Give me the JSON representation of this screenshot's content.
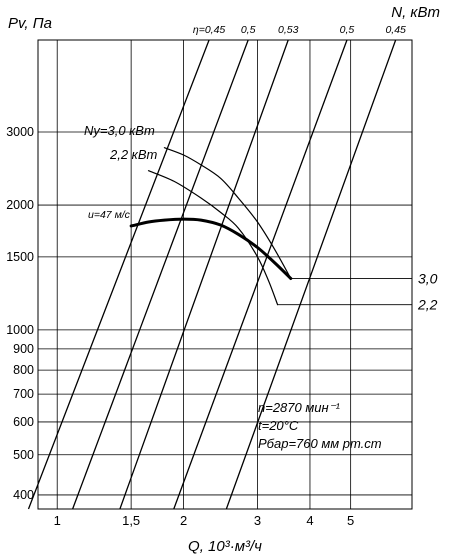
{
  "chart_data": {
    "type": "line",
    "title": "",
    "ylabel": "Pv, Па",
    "ylabel_right": "N, кВт",
    "xlabel": "Q, 10³·м³/ч",
    "x_scale": "log",
    "y_scale": "log",
    "xlim": [
      0.9,
      7
    ],
    "ylim": [
      370,
      5000
    ],
    "x_ticks": [
      {
        "value": 1,
        "label": "1"
      },
      {
        "value": 1.5,
        "label": "1,5"
      },
      {
        "value": 2,
        "label": "2"
      },
      {
        "value": 3,
        "label": "3"
      },
      {
        "value": 4,
        "label": "4"
      },
      {
        "value": 5,
        "label": "5"
      }
    ],
    "y_ticks": [
      {
        "value": 400,
        "label": "400"
      },
      {
        "value": 500,
        "label": "500"
      },
      {
        "value": 600,
        "label": "600"
      },
      {
        "value": 700,
        "label": "700"
      },
      {
        "value": 800,
        "label": "800"
      },
      {
        "value": 900,
        "label": "900"
      },
      {
        "value": 1000,
        "label": "1000"
      },
      {
        "value": 1500,
        "label": "1500"
      },
      {
        "value": 2000,
        "label": "2000"
      },
      {
        "value": 3000,
        "label": "3000"
      }
    ],
    "efficiency_lines": [
      {
        "label": "η=0,45",
        "x_at_400": 0.88,
        "x_top": 2.3
      },
      {
        "label": "0,5",
        "x_at_400": 1.12,
        "x_top": 2.85
      },
      {
        "label": "0,53",
        "x_at_400": 1.45,
        "x_top": 3.55
      },
      {
        "label": "0,5",
        "x_at_400": 1.95,
        "x_top": 4.9
      },
      {
        "label": "0,45",
        "x_at_400": 2.6,
        "x_top": 6.4
      }
    ],
    "series": [
      {
        "label": "u=47 м/с",
        "x": [
          1.5,
          1.65,
          1.8,
          2.0,
          2.2,
          2.45,
          2.7,
          3.0,
          3.3,
          3.6
        ],
        "y": [
          1780,
          1820,
          1840,
          1850,
          1840,
          1790,
          1700,
          1580,
          1450,
          1330
        ]
      },
      {
        "label": "Ny=3,0 кВт",
        "x": [
          1.8,
          2.0,
          2.2,
          2.45,
          2.7,
          3.0,
          3.3,
          3.6
        ],
        "y": [
          2750,
          2640,
          2500,
          2320,
          2080,
          1820,
          1560,
          1330
        ]
      },
      {
        "label": "2,2 кВт",
        "x": [
          1.65,
          1.9,
          2.2,
          2.45,
          2.7,
          3.0,
          3.2,
          3.35
        ],
        "y": [
          2420,
          2280,
          2080,
          1920,
          1760,
          1500,
          1300,
          1150
        ]
      }
    ],
    "power_ticks_right": [
      {
        "label": "3,0",
        "y": 1330
      },
      {
        "label": "2,2",
        "y": 1150
      }
    ],
    "annotations": [
      "n=2870 мин⁻¹",
      "t=20°C",
      "Pбар=760 мм рт.ст"
    ],
    "grid": true
  }
}
